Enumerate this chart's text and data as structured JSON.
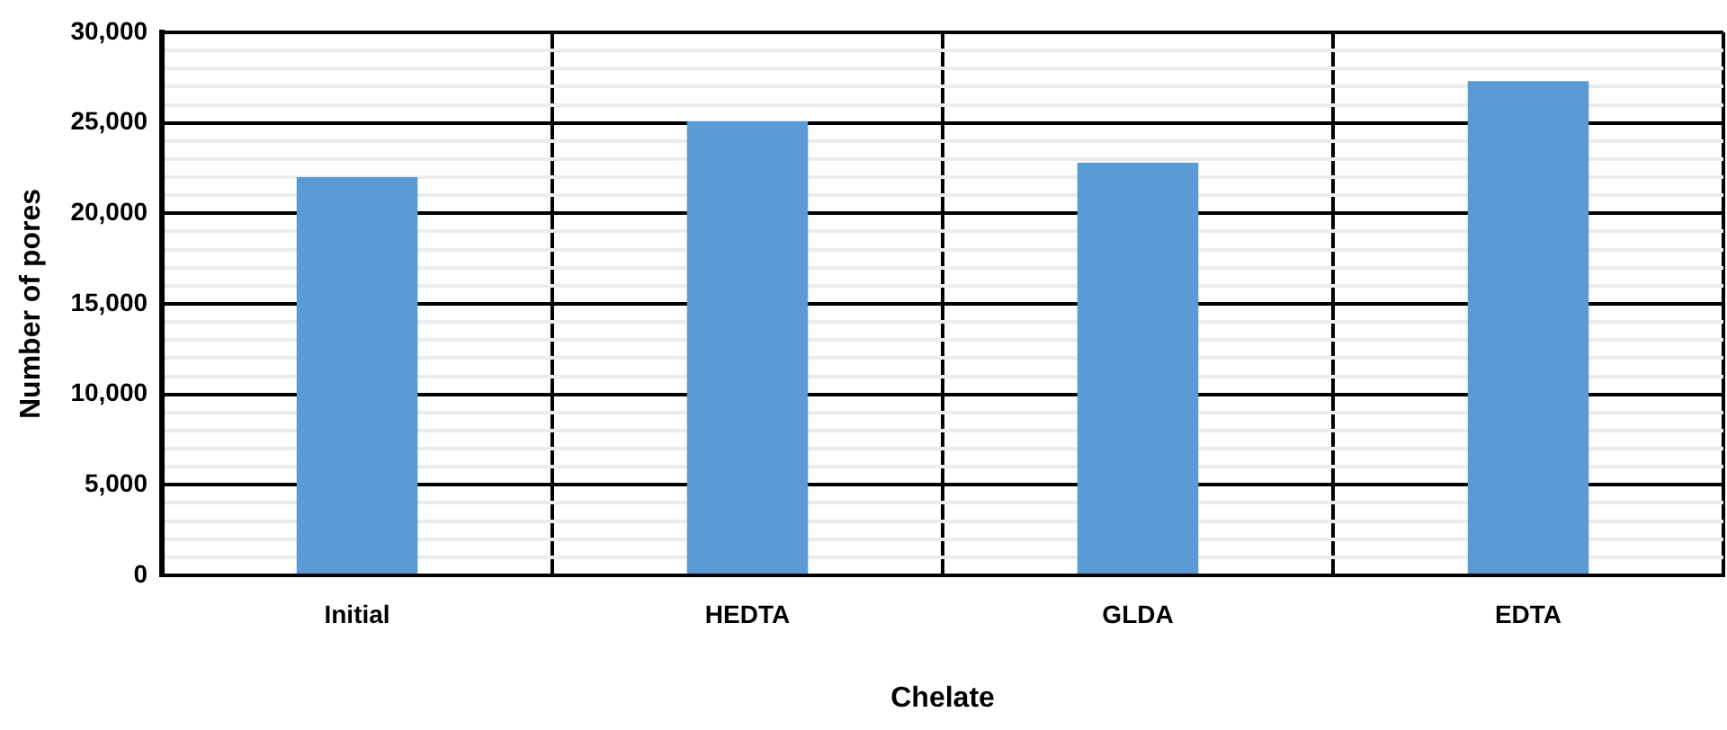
{
  "chart_data": {
    "type": "bar",
    "xlabel": "Chelate",
    "ylabel": "Number of pores",
    "categories": [
      "Initial",
      "HEDTA",
      "GLDA",
      "EDTA"
    ],
    "values": [
      22000,
      25100,
      22800,
      27300
    ],
    "color": "#5b9bd5",
    "ylim": [
      0,
      30000
    ],
    "yticks": [
      0,
      {
        "value": 1000,
        "label": null
      },
      {
        "value": 2000,
        "label": null
      },
      {
        "value": 3000,
        "label": null
      },
      {
        "value": 4000,
        "label": null
      },
      {
        "value": 5000,
        "label": "5,000"
      },
      {
        "value": 6000,
        "label": null
      },
      {
        "value": 7000,
        "label": null
      },
      {
        "value": 8000,
        "label": null
      },
      {
        "value": 9000,
        "label": null
      },
      {
        "value": 10000,
        "label": "10,000"
      },
      {
        "value": 11000,
        "label": null
      },
      {
        "value": 12000,
        "label": null
      },
      {
        "value": 13000,
        "label": null
      },
      {
        "value": 14000,
        "label": null
      },
      {
        "value": 15000,
        "label": "15,000"
      },
      {
        "value": 16000,
        "label": null
      },
      {
        "value": 17000,
        "label": null
      },
      {
        "value": 18000,
        "label": null
      },
      {
        "value": 19000,
        "label": null
      },
      {
        "value": 20000,
        "label": "20,000"
      },
      {
        "value": 21000,
        "label": null
      },
      {
        "value": 22000,
        "label": null
      },
      {
        "value": 23000,
        "label": null
      },
      {
        "value": 24000,
        "label": null
      },
      {
        "value": 25000,
        "label": "25,000"
      },
      {
        "value": 26000,
        "label": null
      },
      {
        "value": 27000,
        "label": null
      },
      {
        "value": 28000,
        "label": null
      },
      {
        "value": 29000,
        "label": null
      },
      {
        "value": 30000,
        "label": "30,000"
      }
    ],
    "grid": true,
    "legend": false
  }
}
